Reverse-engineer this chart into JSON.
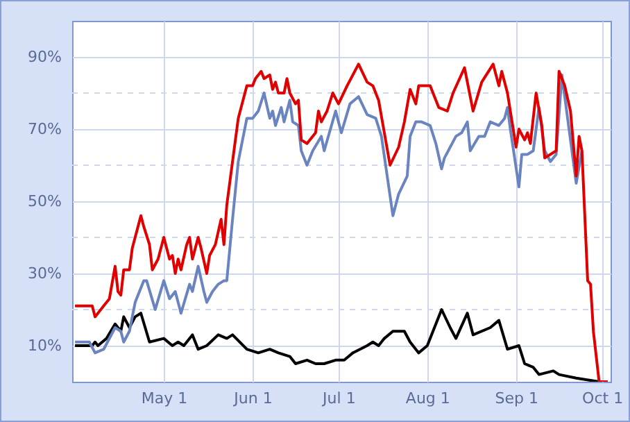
{
  "chart_data": {
    "type": "line",
    "xlim": [
      "--03-30",
      "--10-04"
    ],
    "xticks": [
      {
        "value": "--05-01",
        "label": "May 1"
      },
      {
        "value": "--06-01",
        "label": "Jun 1"
      },
      {
        "value": "--07-01",
        "label": "Jul 1"
      },
      {
        "value": "--08-01",
        "label": "Aug 1"
      },
      {
        "value": "--09-01",
        "label": "Sep 1"
      },
      {
        "value": "--10-01",
        "label": "Oct 1"
      }
    ],
    "ylim": [
      0,
      100
    ],
    "yticks": [
      {
        "value": 10,
        "label": "10%"
      },
      {
        "value": 20,
        "label": null
      },
      {
        "value": 30,
        "label": "30%"
      },
      {
        "value": 40,
        "label": null
      },
      {
        "value": 50,
        "label": "50%"
      },
      {
        "value": 60,
        "label": null
      },
      {
        "value": 70,
        "label": "70%"
      },
      {
        "value": 80,
        "label": null
      },
      {
        "value": 90,
        "label": "90%"
      }
    ],
    "grid": true,
    "line_style": "solid",
    "series": [
      {
        "color": "#e00000",
        "x": [
          "--03-31",
          "--04-06",
          "--04-07",
          "--04-10",
          "--04-12",
          "--04-14",
          "--04-15",
          "--04-16",
          "--04-17",
          "--04-19",
          "--04-20",
          "--04-23",
          "--04-24",
          "--04-26",
          "--04-27",
          "--04-29",
          "--05-01",
          "--05-03",
          "--05-04",
          "--05-05",
          "--05-06",
          "--05-07",
          "--05-09",
          "--05-10",
          "--05-11",
          "--05-13",
          "--05-14",
          "--05-16",
          "--05-17",
          "--05-19",
          "--05-21",
          "--05-22",
          "--05-23",
          "--05-25",
          "--05-27",
          "--05-30",
          "--06-01",
          "--06-02",
          "--06-04",
          "--06-05",
          "--06-07",
          "--06-08",
          "--06-09",
          "--06-10",
          "--06-12",
          "--06-13",
          "--06-14",
          "--06-16",
          "--06-17",
          "--06-18",
          "--06-20",
          "--06-23",
          "--06-24",
          "--06-25",
          "--06-27",
          "--06-29",
          "--07-01",
          "--07-04",
          "--07-08",
          "--07-11",
          "--07-13",
          "--07-15",
          "--07-19",
          "--07-22",
          "--07-24",
          "--07-26",
          "--07-28",
          "--07-29",
          "--08-02",
          "--08-03",
          "--08-05",
          "--08-08",
          "--08-10",
          "--08-14",
          "--08-17",
          "--08-20",
          "--08-24",
          "--08-26",
          "--08-27",
          "--08-29",
          "--09-01",
          "--09-02",
          "--09-04",
          "--09-05",
          "--09-06",
          "--09-08",
          "--09-10",
          "--09-11",
          "--09-15",
          "--09-16",
          "--09-18",
          "--09-20",
          "--09-22",
          "--09-23",
          "--09-24",
          "--09-25",
          "--09-26",
          "--09-27",
          "--09-28",
          "--09-30",
          "--10-03"
        ],
        "values": [
          21,
          21,
          18,
          21,
          23,
          32,
          25,
          24,
          31,
          31,
          37,
          46,
          43,
          38,
          31,
          34,
          40,
          34,
          35,
          30,
          34,
          31,
          38,
          40,
          34,
          40,
          37,
          30,
          35,
          38,
          45,
          38,
          49,
          61,
          73,
          82,
          82,
          84,
          86,
          84,
          85,
          81,
          83,
          80,
          80,
          84,
          80,
          77,
          78,
          67,
          66,
          69,
          75,
          72,
          75,
          80,
          77,
          82,
          88,
          83,
          82,
          78,
          60,
          65,
          72,
          81,
          77,
          82,
          82,
          80,
          76,
          75,
          80,
          87,
          75,
          83,
          88,
          82,
          86,
          80,
          65,
          70,
          67,
          69,
          66,
          80,
          71,
          62,
          64,
          86,
          82,
          75,
          57,
          68,
          64,
          46,
          28,
          27,
          14,
          0,
          0
        ]
      },
      {
        "color": "#6a84c0",
        "x": [
          "--03-31",
          "--04-05",
          "--04-07",
          "--04-10",
          "--04-14",
          "--04-16",
          "--04-17",
          "--04-19",
          "--04-21",
          "--04-24",
          "--04-25",
          "--04-28",
          "--05-01",
          "--05-03",
          "--05-05",
          "--05-07",
          "--05-10",
          "--05-11",
          "--05-13",
          "--05-15",
          "--05-16",
          "--05-18",
          "--05-20",
          "--05-22",
          "--05-23",
          "--05-25",
          "--05-27",
          "--05-30",
          "--06-01",
          "--06-03",
          "--06-05",
          "--06-07",
          "--06-08",
          "--06-09",
          "--06-11",
          "--06-12",
          "--06-14",
          "--06-15",
          "--06-17",
          "--06-18",
          "--06-20",
          "--06-22",
          "--06-25",
          "--06-26",
          "--06-30",
          "--07-02",
          "--07-05",
          "--07-08",
          "--07-11",
          "--07-14",
          "--07-16",
          "--07-18",
          "--07-20",
          "--07-22",
          "--07-25",
          "--07-26",
          "--07-28",
          "--07-30",
          "--08-02",
          "--08-04",
          "--08-06",
          "--08-07",
          "--08-11",
          "--08-13",
          "--08-15",
          "--08-16",
          "--08-19",
          "--08-21",
          "--08-23",
          "--08-26",
          "--08-28",
          "--08-29",
          "--08-30",
          "--09-02",
          "--09-03",
          "--09-05",
          "--09-07",
          "--09-09",
          "--09-11",
          "--09-13",
          "--09-15",
          "--09-17",
          "--09-19",
          "--09-21",
          "--09-22",
          "--09-24",
          "--09-25",
          "--09-26",
          "--09-27",
          "--09-28",
          "--09-30",
          "--10-03"
        ],
        "values": [
          11,
          11,
          8,
          9,
          15,
          14,
          11,
          14,
          22,
          28,
          28,
          20,
          28,
          23,
          25,
          19,
          27,
          25,
          32,
          25,
          22,
          25,
          27,
          28,
          28,
          45,
          61,
          73,
          73,
          75,
          80,
          73,
          75,
          71,
          76,
          72,
          78,
          72,
          71,
          64,
          60,
          64,
          68,
          64,
          75,
          69,
          77,
          79,
          74,
          73,
          68,
          57,
          46,
          52,
          57,
          68,
          72,
          72,
          71,
          66,
          59,
          62,
          68,
          69,
          72,
          64,
          68,
          68,
          72,
          71,
          73,
          76,
          70,
          54,
          63,
          63,
          64,
          76,
          64,
          61,
          63,
          85,
          73,
          61,
          55,
          64,
          null,
          null,
          null,
          null,
          0,
          0
        ]
      },
      {
        "color": "#000000",
        "x": [
          "--03-31",
          "--04-06",
          "--04-07",
          "--04-08",
          "--04-11",
          "--04-14",
          "--04-16",
          "--04-17",
          "--04-19",
          "--04-21",
          "--04-23",
          "--04-26",
          "--05-01",
          "--05-04",
          "--05-06",
          "--05-08",
          "--05-11",
          "--05-13",
          "--05-16",
          "--05-20",
          "--05-23",
          "--05-25",
          "--05-30",
          "--06-03",
          "--06-07",
          "--06-10",
          "--06-14",
          "--06-16",
          "--06-20",
          "--06-23",
          "--06-26",
          "--06-30",
          "--07-03",
          "--07-06",
          "--07-11",
          "--07-13",
          "--07-15",
          "--07-17",
          "--07-20",
          "--07-24",
          "--07-26",
          "--07-29",
          "--08-01",
          "--08-06",
          "--08-09",
          "--08-11",
          "--08-15",
          "--08-17",
          "--08-23",
          "--08-26",
          "--08-29",
          "--09-02",
          "--09-04",
          "--09-07",
          "--09-09",
          "--09-14",
          "--09-16",
          "--09-22",
          "--09-30",
          "--10-03"
        ],
        "values": [
          10,
          10,
          11,
          10,
          12,
          16,
          14,
          18,
          15,
          18,
          19,
          11,
          12,
          10,
          11,
          10,
          13,
          9,
          10,
          13,
          12,
          13,
          9,
          8,
          9,
          8,
          7,
          5,
          6,
          5,
          5,
          6,
          6,
          8,
          10,
          11,
          10,
          12,
          14,
          14,
          11,
          8,
          10,
          20,
          15,
          12,
          19,
          13,
          15,
          17,
          9,
          10,
          5,
          4,
          2,
          3,
          2,
          1,
          0,
          0
        ]
      }
    ]
  }
}
